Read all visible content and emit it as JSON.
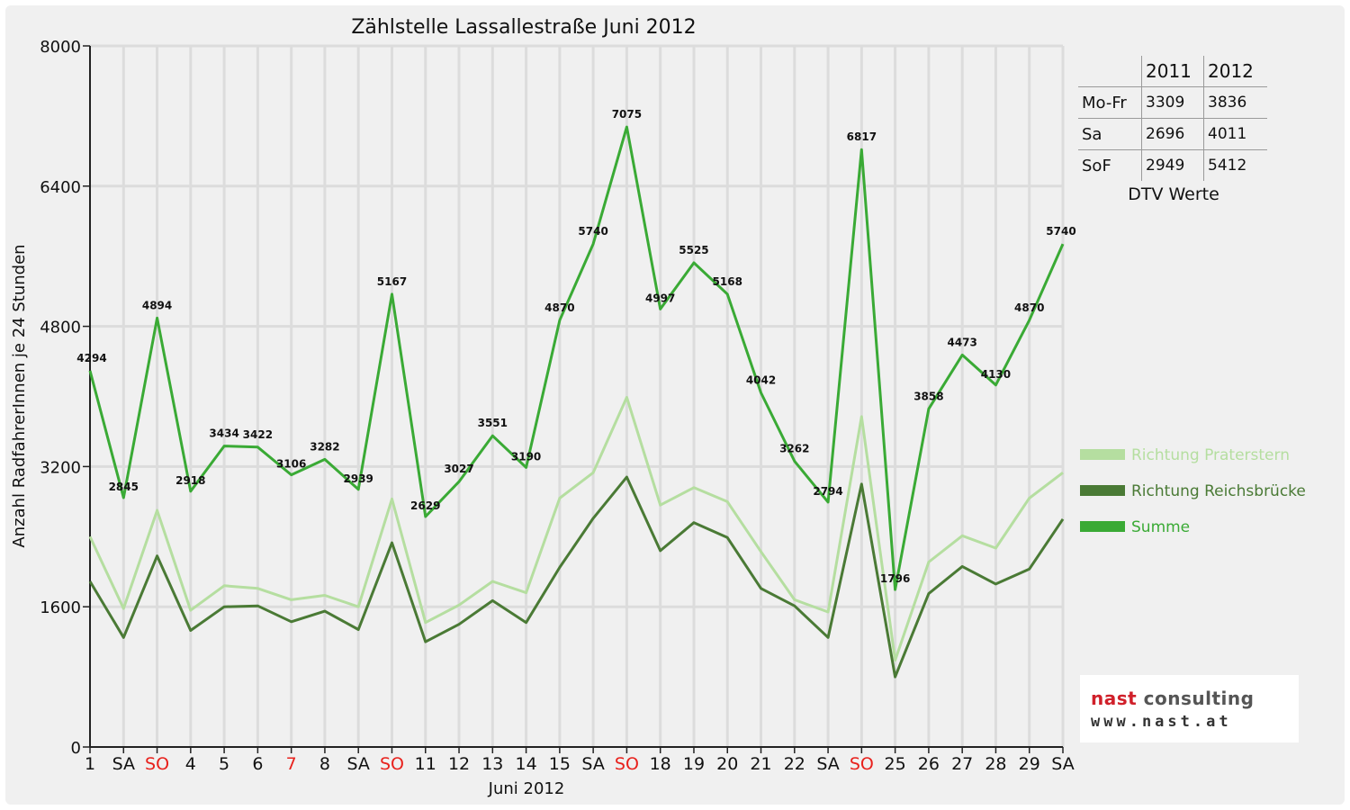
{
  "chart_data": {
    "type": "line",
    "title": "Zählstelle Lassallestraße Juni 2012",
    "xlabel": "Juni 2012",
    "ylabel": "Anzahl RadfahrerInnen je 24 Stunden",
    "ylim": [
      0,
      8000
    ],
    "yticks": [
      "0",
      "1600",
      "3200",
      "4800",
      "6400",
      "8000"
    ],
    "grid": true,
    "legend_position": "right",
    "categories": [
      "1",
      "SA",
      "SO",
      "4",
      "5",
      "6",
      "7",
      "8",
      "SA",
      "SO",
      "11",
      "12",
      "13",
      "14",
      "15",
      "SA",
      "SO",
      "18",
      "19",
      "20",
      "21",
      "22",
      "SA",
      "SO",
      "25",
      "26",
      "27",
      "28",
      "29",
      "SA"
    ],
    "red_categories": [
      2,
      6,
      9,
      16,
      23
    ],
    "series": [
      {
        "name": "Richtung Praterstern",
        "color": "#b5dea0",
        "values": [
          2400,
          1580,
          2700,
          1560,
          1840,
          1810,
          1680,
          1730,
          1600,
          2830,
          1420,
          1620,
          1890,
          1760,
          2840,
          3130,
          3990,
          2760,
          2960,
          2800,
          2230,
          1680,
          1540,
          3770,
          990,
          2110,
          2410,
          2270,
          2840,
          3130
        ]
      },
      {
        "name": "Richtung Reichsbrücke",
        "color": "#4a7a35",
        "values": [
          1890,
          1250,
          2180,
          1330,
          1600,
          1610,
          1430,
          1550,
          1340,
          2330,
          1200,
          1400,
          1670,
          1420,
          2050,
          2610,
          3080,
          2240,
          2560,
          2390,
          1810,
          1610,
          1250,
          3000,
          800,
          1750,
          2060,
          1860,
          2030,
          2600
        ]
      },
      {
        "name": "Summe",
        "color": "#3aaa35",
        "values": [
          4294,
          2845,
          4894,
          2918,
          3434,
          3422,
          3106,
          3282,
          2939,
          5167,
          2629,
          3027,
          3551,
          3190,
          4870,
          5740,
          7075,
          4997,
          5525,
          5168,
          4042,
          3262,
          2794,
          6817,
          1796,
          3858,
          4473,
          4130,
          4870,
          5740
        ]
      }
    ]
  },
  "dtv_table": {
    "headers": [
      "",
      "2011",
      "2012"
    ],
    "rows": [
      {
        "label": "Mo-Fr",
        "v2011": "3309",
        "v2012": "3836"
      },
      {
        "label": "Sa",
        "v2011": "2696",
        "v2012": "4011"
      },
      {
        "label": "SoF",
        "v2011": "2949",
        "v2012": "5412"
      }
    ],
    "caption": "DTV Werte"
  },
  "logo": {
    "name_part1": "nast",
    "name_part2": " consulting",
    "url": "www.nast.at"
  }
}
